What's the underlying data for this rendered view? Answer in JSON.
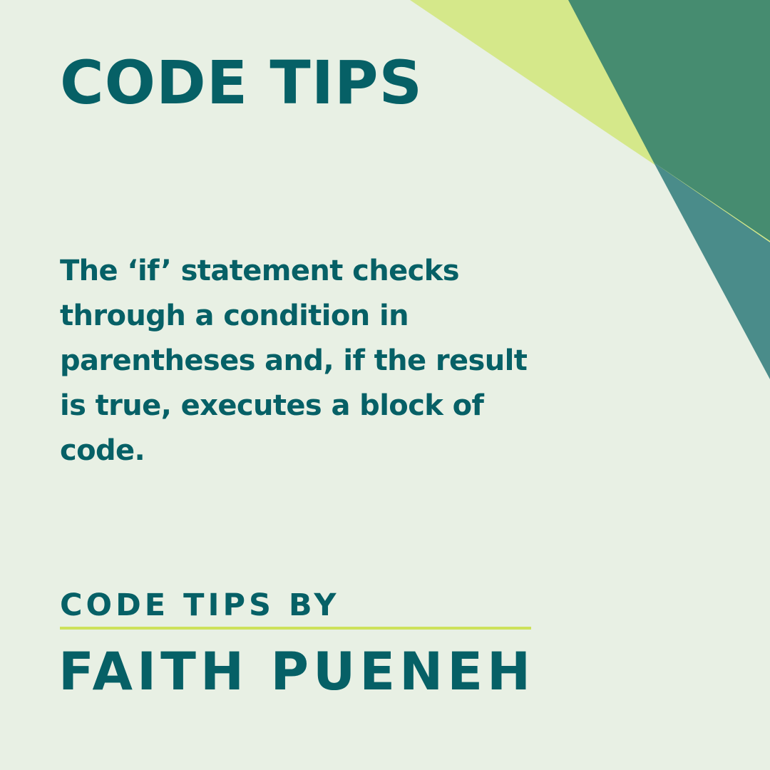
{
  "title": "CODE TIPS",
  "tip": {
    "text": "The ‘if’ statement checks through a condition in parentheses and, if the result is true, executes a block of code."
  },
  "byline": "CODE TIPS BY",
  "author": "FAITH PUENEH",
  "colors": {
    "background": "#e8f0e4",
    "text": "#066066",
    "lime": "#d5e88a",
    "forest": "#468c70",
    "teal": "#4a8c8a",
    "divider": "#cde25a"
  }
}
